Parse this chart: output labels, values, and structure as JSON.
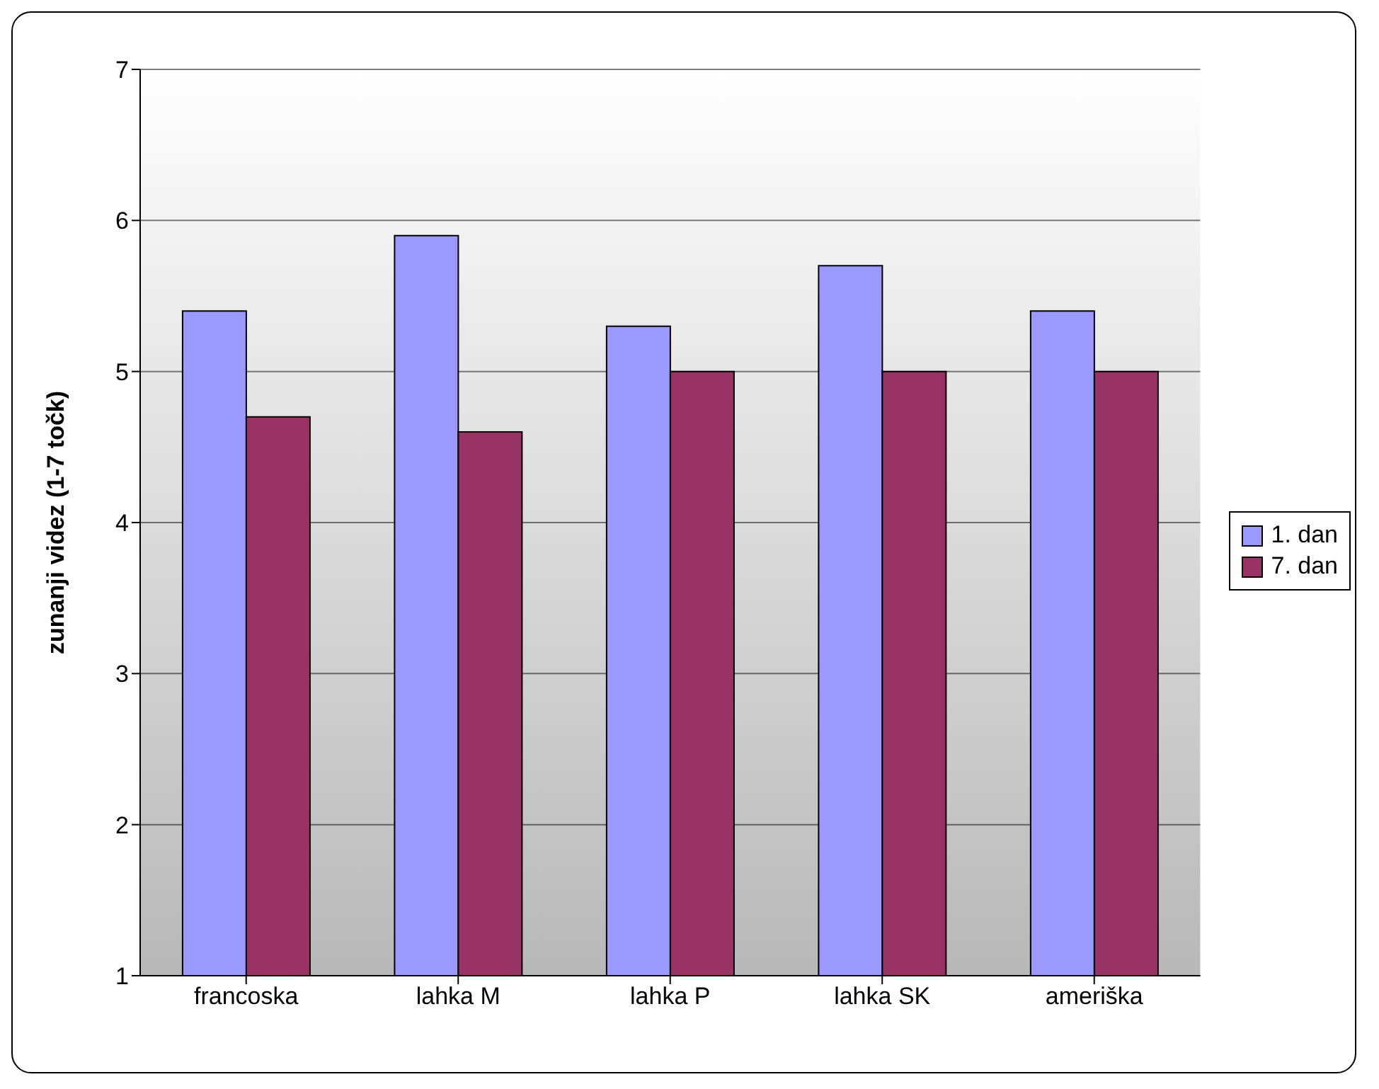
{
  "chart_data": {
    "type": "bar",
    "ylabel": "zunanji videz (1-7 točk)",
    "categories": [
      "francoska",
      "lahka M",
      "lahka P",
      "lahka SK",
      "ameriška"
    ],
    "series": [
      {
        "name": "1. dan",
        "color": "#9999ff",
        "values": [
          5.4,
          5.9,
          5.3,
          5.7,
          5.4
        ]
      },
      {
        "name": "7. dan",
        "color": "#993366",
        "values": [
          4.7,
          4.6,
          5.0,
          5.0,
          5.0
        ]
      }
    ],
    "ylim": [
      1,
      7
    ],
    "yticks": [
      1,
      2,
      3,
      4,
      5,
      6,
      7
    ],
    "grid": "y",
    "legend": "right"
  }
}
